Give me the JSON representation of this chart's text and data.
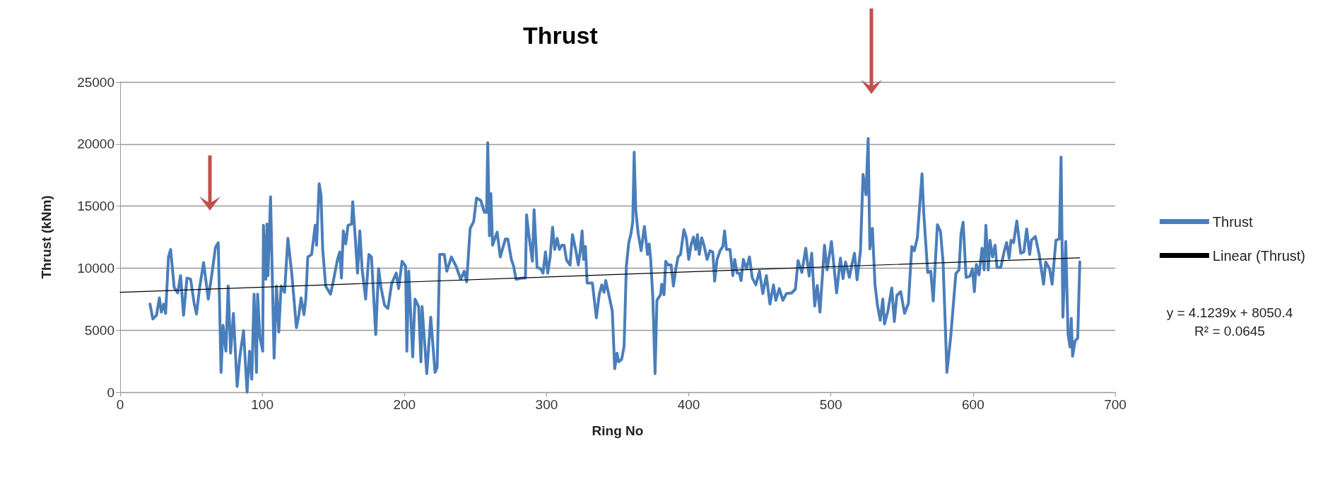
{
  "chart_data": {
    "type": "line",
    "title": "Thrust",
    "xlabel": "Ring No",
    "ylabel": "Thrust (kNm)",
    "xlim": [
      0,
      700
    ],
    "xticks": [
      0,
      100,
      200,
      300,
      400,
      500,
      600,
      700
    ],
    "ylim": [
      0,
      25000
    ],
    "yticks": [
      0,
      5000,
      10000,
      15000,
      20000,
      25000
    ],
    "grid": "y",
    "legend": "right",
    "marker": "none",
    "annotations": [
      "y = 4.1239x + 8050.4",
      "R² = 0.0645"
    ],
    "series": [
      {
        "name": "Thrust",
        "color": "#4a7ebb",
        "x": [
          21,
          23,
          25.6,
          27.6,
          29,
          30.6,
          32,
          34,
          35.5,
          38,
          40.5,
          42.5,
          44.6,
          47,
          49.6,
          52,
          53.7,
          56,
          58.7,
          62,
          65.3,
          67,
          69,
          71,
          72.4,
          74.4,
          76,
          77.7,
          79.7,
          82.3,
          84.3,
          86.8,
          89.3,
          91,
          92.6,
          94.2,
          95.9,
          96.7,
          98.3,
          100.3,
          100.8,
          102.5,
          103.3,
          104,
          105.8,
          108.3,
          110,
          111.6,
          113.2,
          115.7,
          118,
          120.7,
          124,
          125.6,
          127.3,
          129.3,
          130.6,
          132,
          134.7,
          137.2,
          138.2,
          140,
          141.3,
          142.5,
          144.6,
          148,
          150.4,
          152.9,
          154.5,
          155.7,
          157,
          158.7,
          160.3,
          162.8,
          163.6,
          165.3,
          167,
          168.6,
          170.2,
          172.7,
          175,
          176.8,
          179.8,
          181.8,
          183.5,
          186,
          188.4,
          191,
          194.2,
          195.9,
          198.3,
          200.8,
          201.7,
          203,
          205.8,
          207.4,
          210,
          211.6,
          212.4,
          215.7,
          218.5,
          221.5,
          223,
          224.8,
          228,
          229.8,
          233,
          236.3,
          239.6,
          242,
          243.8,
          246.2,
          248.7,
          250.7,
          253.7,
          256.2,
          257.8,
          258.6,
          259.8,
          260.8,
          262,
          265.2,
          267.4,
          271,
          272.7,
          275.2,
          276.8,
          278.5,
          282.6,
          285.1,
          285.9,
          287.6,
          290,
          291.2,
          293.3,
          295.8,
          297.5,
          299.2,
          300.8,
          302.5,
          304.2,
          305.7,
          307.4,
          309,
          310.7,
          312.3,
          314,
          316.5,
          318.2,
          320.6,
          322.3,
          323.6,
          325,
          326,
          327.3,
          328.5,
          332.2,
          335,
          337,
          338.8,
          340.4,
          341.6,
          343.4,
          346.2,
          347.9,
          349.5,
          350.7,
          352.8,
          354.5,
          356.1,
          357.8,
          359.4,
          360.6,
          361.6,
          362.7,
          364.4,
          366.5,
          368.8,
          371,
          372.2,
          373.2,
          374.7,
          376.3,
          377.6,
          380.1,
          381,
          382.6,
          383.8,
          385.4,
          387.6,
          389.2,
          390.9,
          392.5,
          394.2,
          396.6,
          398.3,
          400,
          401.6,
          403.3,
          404.9,
          406.1,
          407.4,
          409.1,
          410.7,
          412.9,
          414.9,
          416.9,
          418.2,
          419.9,
          422,
          424,
          425.2,
          426.5,
          429,
          431,
          432.3,
          434,
          435.6,
          436.8,
          438.4,
          440.6,
          442.7,
          444.7,
          447.2,
          449.7,
          452.1,
          454.6,
          457.1,
          459.6,
          461.2,
          463.7,
          466.2,
          468.7,
          472.4,
          475,
          476.9,
          479.6,
          482.3,
          484.7,
          486.5,
          488.6,
          490.4,
          492.3,
          495.5,
          497.3,
          500.4,
          504,
          506.7,
          508.5,
          510.3,
          513,
          514.8,
          516.6,
          518.4,
          520.8,
          522.6,
          524.7,
          526.2,
          527.4,
          529.2,
          531,
          532.8,
          534.7,
          536.5,
          537.7,
          540.1,
          542.8,
          544.6,
          546.4,
          549.1,
          551.8,
          554.5,
          556.9,
          558.7,
          560.8,
          564.1,
          565.3,
          568.1,
          570.2,
          572,
          574.9,
          577.1,
          578.9,
          581.6,
          584.3,
          587.9,
          590.1,
          591.5,
          593,
          595.1,
          597.8,
          599.6,
          600.9,
          602.3,
          604.2,
          606.3,
          607.8,
          609,
          610.7,
          611.9,
          613.7,
          615.5,
          616.8,
          619.5,
          621.8,
          623.6,
          625.4,
          626.7,
          628.5,
          630.8,
          633.5,
          635.7,
          637.7,
          639.8,
          641.1,
          643.8,
          646.5,
          649.6,
          651.1,
          653.8,
          655.6,
          658.3,
          660.7,
          661.9,
          663.2,
          665.2,
          666.8,
          668.2,
          669.1,
          670,
          671.8,
          673.6,
          675.1
        ],
        "values": [
          7100,
          5900,
          6200,
          7600,
          6450,
          7100,
          6350,
          10900,
          11500,
          8450,
          8000,
          9400,
          6200,
          9200,
          9100,
          7200,
          6300,
          8500,
          10450,
          7500,
          10150,
          11650,
          12050,
          1600,
          5400,
          3300,
          8550,
          3150,
          6350,
          470,
          2950,
          4950,
          0,
          3300,
          1050,
          7900,
          1600,
          7900,
          4450,
          3300,
          13450,
          9100,
          13550,
          9400,
          15750,
          2750,
          8550,
          4850,
          8550,
          8050,
          12400,
          9600,
          5200,
          6150,
          7600,
          6250,
          7500,
          10900,
          11100,
          13450,
          11850,
          16800,
          15850,
          11500,
          8550,
          7900,
          9200,
          10700,
          11300,
          9200,
          13000,
          11950,
          13450,
          13550,
          15350,
          12600,
          9600,
          13000,
          9950,
          7500,
          11100,
          10900,
          4650,
          9950,
          8450,
          7000,
          6750,
          8750,
          9600,
          8350,
          10550,
          10150,
          3300,
          9750,
          2850,
          7500,
          6900,
          2450,
          6900,
          1500,
          6050,
          1600,
          2000,
          11100,
          11100,
          9750,
          10900,
          10150,
          9100,
          9750,
          8900,
          13200,
          13750,
          15650,
          15450,
          14500,
          14500,
          20100,
          12600,
          16000,
          11850,
          12900,
          10900,
          12350,
          12350,
          10700,
          10150,
          9100,
          9200,
          9200,
          14300,
          12600,
          10550,
          14700,
          10050,
          9950,
          9600,
          11300,
          9600,
          10900,
          13300,
          11500,
          12400,
          11500,
          11850,
          11850,
          10650,
          10250,
          12700,
          11400,
          10250,
          11300,
          13000,
          10700,
          11750,
          8800,
          8800,
          6000,
          7850,
          8650,
          8050,
          9000,
          8050,
          6550,
          1900,
          3150,
          2450,
          2650,
          3700,
          10150,
          12050,
          12800,
          13750,
          19350,
          14700,
          12800,
          11400,
          13350,
          11100,
          11950,
          10700,
          7700,
          1500,
          7400,
          7850,
          8700,
          7850,
          10550,
          10250,
          10250,
          8550,
          9950,
          10900,
          11100,
          13100,
          12450,
          10700,
          11850,
          12500,
          11500,
          12700,
          11100,
          12450,
          11850,
          10700,
          11400,
          11300,
          8950,
          10700,
          11400,
          11750,
          13000,
          11500,
          11500,
          9400,
          10700,
          9600,
          9600,
          9000,
          10700,
          9950,
          10900,
          9200,
          8650,
          9750,
          7950,
          9400,
          7100,
          8650,
          7400,
          8350,
          7400,
          7950,
          8000,
          8300,
          10600,
          9650,
          11600,
          9350,
          11200,
          6950,
          8600,
          6450,
          11850,
          9850,
          12150,
          8000,
          10800,
          9150,
          10500,
          9250,
          10300,
          11200,
          9050,
          11400,
          17550,
          15900,
          20450,
          11550,
          13200,
          8700,
          6950,
          5800,
          7500,
          5500,
          6550,
          8400,
          5700,
          7800,
          8100,
          6350,
          7150,
          11750,
          11400,
          12450,
          17600,
          14450,
          9650,
          9750,
          7350,
          13500,
          12950,
          10500,
          1600,
          4500,
          9550,
          9850,
          12750,
          13700,
          9250,
          9350,
          9950,
          8100,
          10300,
          9450,
          11600,
          9850,
          13450,
          9850,
          12250,
          10900,
          11850,
          10050,
          10050,
          11300,
          12050,
          10800,
          12250,
          12050,
          13800,
          11200,
          11300,
          13150,
          11100,
          12250,
          12550,
          11100,
          8700,
          10500,
          9950,
          8700,
          12250,
          12350,
          18950,
          6050,
          12150,
          4700,
          3650,
          5950,
          2900,
          4150,
          4350,
          10500
        ]
      },
      {
        "name": "Linear (Thrust)",
        "color": "#000000",
        "x": [
          0,
          675
        ],
        "values": [
          8050,
          10830
        ]
      }
    ]
  }
}
